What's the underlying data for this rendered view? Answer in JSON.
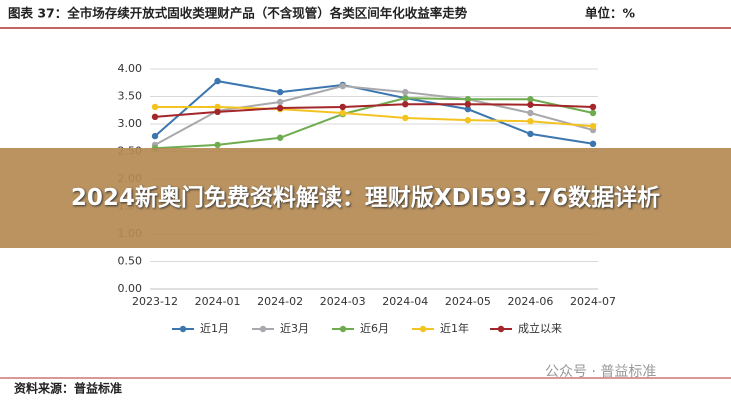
{
  "chart_data": {
    "type": "line",
    "title": "图表 37：全市场存续开放式固收类理财产品（不含现管）各类区间年化收益率走势",
    "unit": "单位：%",
    "categories": [
      "2023-12",
      "2024-01",
      "2024-02",
      "2024-03",
      "2024-04",
      "2024-05",
      "2024-06",
      "2024-07"
    ],
    "series": [
      {
        "name": "近1月",
        "color": "#3c76af",
        "values": [
          2.78,
          3.78,
          3.58,
          3.71,
          3.47,
          3.27,
          2.82,
          2.64
        ]
      },
      {
        "name": "近3月",
        "color": "#a9a9ad",
        "values": [
          2.62,
          3.24,
          3.4,
          3.69,
          3.58,
          3.45,
          3.2,
          2.89
        ]
      },
      {
        "name": "近6月",
        "color": "#6fac4f",
        "values": [
          2.56,
          2.62,
          2.75,
          3.18,
          3.47,
          3.45,
          3.45,
          3.2
        ]
      },
      {
        "name": "近1年",
        "color": "#f3c322",
        "values": [
          3.31,
          3.31,
          3.27,
          3.2,
          3.11,
          3.07,
          3.05,
          2.96
        ]
      },
      {
        "name": "成立以来",
        "color": "#a3262a",
        "values": [
          3.13,
          3.22,
          3.29,
          3.31,
          3.36,
          3.36,
          3.35,
          3.31
        ]
      }
    ],
    "ylim": [
      0,
      4
    ],
    "yticks": [
      {
        "value": 0,
        "label": "0.00"
      },
      {
        "value": 0.5,
        "label": "0.50"
      },
      {
        "value": 1,
        "label": "1.00"
      },
      {
        "value": 1.5,
        "label": "1.50"
      },
      {
        "value": 2,
        "label": "2.00"
      },
      {
        "value": 2.5,
        "label": "2.50"
      },
      {
        "value": 3,
        "label": "3.00"
      },
      {
        "value": 3.5,
        "label": "3.50"
      },
      {
        "value": 4,
        "label": "4.00"
      }
    ],
    "grid": true
  },
  "banner": "2024新奥门免费资料解读：理财版XDI593.76数据详析",
  "watermark": "公众号 · 普益标准",
  "source": "资料来源：普益标准"
}
